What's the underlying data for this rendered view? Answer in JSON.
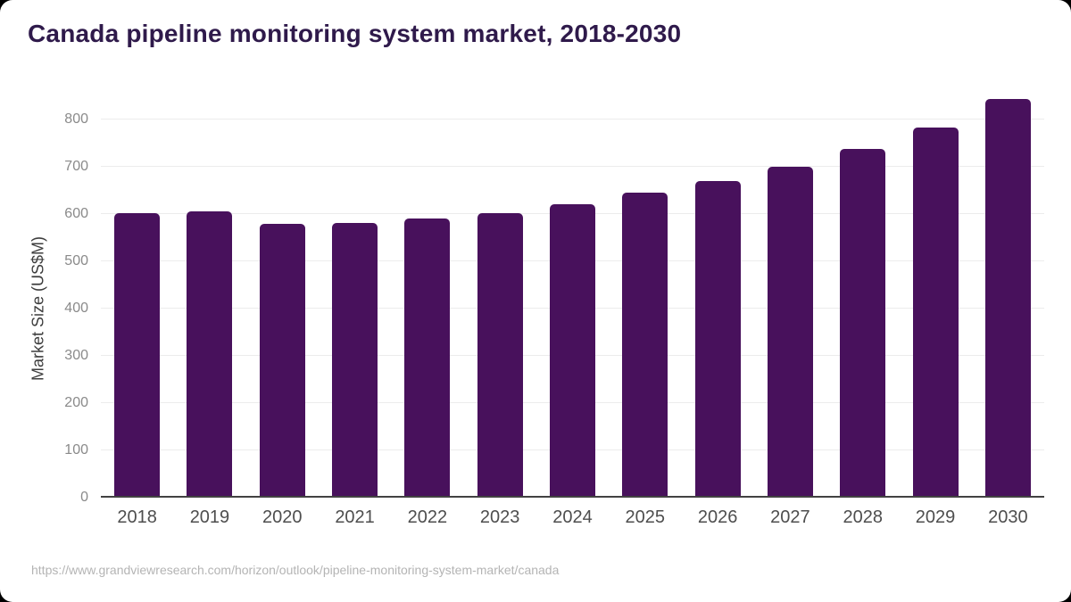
{
  "header": {
    "title": "Canada pipeline monitoring system market, 2018-2030"
  },
  "footer": {
    "source_url": "https://www.grandviewresearch.com/horizon/outlook/pipeline-monitoring-system-market/canada"
  },
  "colors": {
    "bar": "#48115c",
    "title_text": "#2f1a4b",
    "axis_line": "#424242",
    "gridline": "#ececec",
    "y_tick_text": "#8a8a8a",
    "x_tick_text": "#4e4e4e",
    "source_text": "#b4b4b4",
    "card_background": "#ffffff",
    "page_background": "#000000"
  },
  "chart_data": {
    "type": "bar",
    "title": "Canada pipeline monitoring system market, 2018-2030",
    "xlabel": "",
    "ylabel": "Market Size (US$M)",
    "categories": [
      "2018",
      "2019",
      "2020",
      "2021",
      "2022",
      "2023",
      "2024",
      "2025",
      "2026",
      "2027",
      "2028",
      "2029",
      "2030"
    ],
    "values": [
      601,
      606,
      579,
      582,
      590,
      602,
      621,
      645,
      669,
      700,
      737,
      782,
      844
    ],
    "yticks": [
      0,
      100,
      200,
      300,
      400,
      500,
      600,
      700,
      800
    ],
    "ylim": [
      0,
      864
    ],
    "grid": true,
    "legend": false,
    "bar_color": "#48115c"
  }
}
